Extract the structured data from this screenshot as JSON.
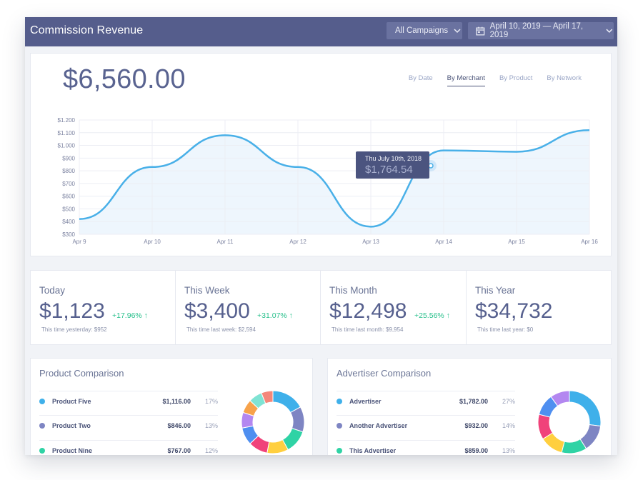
{
  "header": {
    "title": "Commission Revenue",
    "campaigns_label": "All Campaigns",
    "date_range_label": "April 10, 2019 — April 17, 2019"
  },
  "main": {
    "total": "$6,560.00",
    "tabs": [
      "By Date",
      "By Merchant",
      "By Product",
      "By Network"
    ],
    "active_tab": "By Merchant",
    "tooltip": {
      "date": "Thu July 10th, 2018",
      "value": "$1,764.54"
    }
  },
  "chart_data": {
    "type": "area",
    "x": [
      "Apr 9",
      "Apr 10",
      "Apr 11",
      "Apr 12",
      "Apr 13",
      "Apr 14",
      "Apr 15",
      "Apr 16"
    ],
    "y_ticks": [
      "$1.200",
      "$1.100",
      "$1.000",
      "$900",
      "$800",
      "$700",
      "$600",
      "$500",
      "$400",
      "$300"
    ],
    "ylim": [
      300,
      1200
    ],
    "grid": true,
    "series": [
      {
        "values": [
          420,
          830,
          1080,
          830,
          360,
          960,
          950,
          1120
        ]
      }
    ],
    "colors": {
      "line": "#49b0e8",
      "fill": "#eef6fd"
    }
  },
  "stats": [
    {
      "label": "Today",
      "value": "$1,123",
      "change": "+17.96% ↑",
      "sub": "This time yesterday: $952"
    },
    {
      "label": "This Week",
      "value": "$3,400",
      "change": "+31.07% ↑",
      "sub": "This time last week: $2,594"
    },
    {
      "label": "This Month",
      "value": "$12,498",
      "change": "+25.56% ↑",
      "sub": "This time last month: $9,954"
    },
    {
      "label": "This Year",
      "value": "$34,732",
      "change": "",
      "sub": "This time last year: $0"
    }
  ],
  "product_comparison": {
    "title": "Product Comparison",
    "rows": [
      {
        "name": "Product Five",
        "amount": "$1,116.00",
        "pct": "17%",
        "color": "#3fb0ea"
      },
      {
        "name": "Product Two",
        "amount": "$846.00",
        "pct": "13%",
        "color": "#7e85c3"
      },
      {
        "name": "Product Nine",
        "amount": "$767.00",
        "pct": "12%",
        "color": "#2fd3a5"
      }
    ],
    "donut": [
      {
        "value": 17,
        "color": "#3fb0ea"
      },
      {
        "value": 13,
        "color": "#7e85c3"
      },
      {
        "value": 12,
        "color": "#2fd3a5"
      },
      {
        "value": 11,
        "color": "#ffcf3f"
      },
      {
        "value": 10,
        "color": "#f0427a"
      },
      {
        "value": 9,
        "color": "#4f8ff0"
      },
      {
        "value": 8,
        "color": "#b387f0"
      },
      {
        "value": 7,
        "color": "#f7a24a"
      },
      {
        "value": 7,
        "color": "#7fe3d3"
      },
      {
        "value": 6,
        "color": "#f4877a"
      }
    ]
  },
  "advertiser_comparison": {
    "title": "Advertiser Comparison",
    "rows": [
      {
        "name": "Advertiser",
        "amount": "$1,782.00",
        "pct": "27%",
        "color": "#3fb0ea"
      },
      {
        "name": "Another Advertiser",
        "amount": "$932.00",
        "pct": "14%",
        "color": "#7e85c3"
      },
      {
        "name": "This Advertiser",
        "amount": "$859.00",
        "pct": "13%",
        "color": "#2fd3a5"
      }
    ],
    "donut": [
      {
        "value": 27,
        "color": "#3fb0ea"
      },
      {
        "value": 14,
        "color": "#7e85c3"
      },
      {
        "value": 13,
        "color": "#2fd3a5"
      },
      {
        "value": 12,
        "color": "#ffcf3f"
      },
      {
        "value": 13,
        "color": "#f0427a"
      },
      {
        "value": 11,
        "color": "#4f8ff0"
      },
      {
        "value": 10,
        "color": "#b387f0"
      }
    ]
  },
  "icons": [
    "chevron-down-icon",
    "calendar-icon"
  ]
}
